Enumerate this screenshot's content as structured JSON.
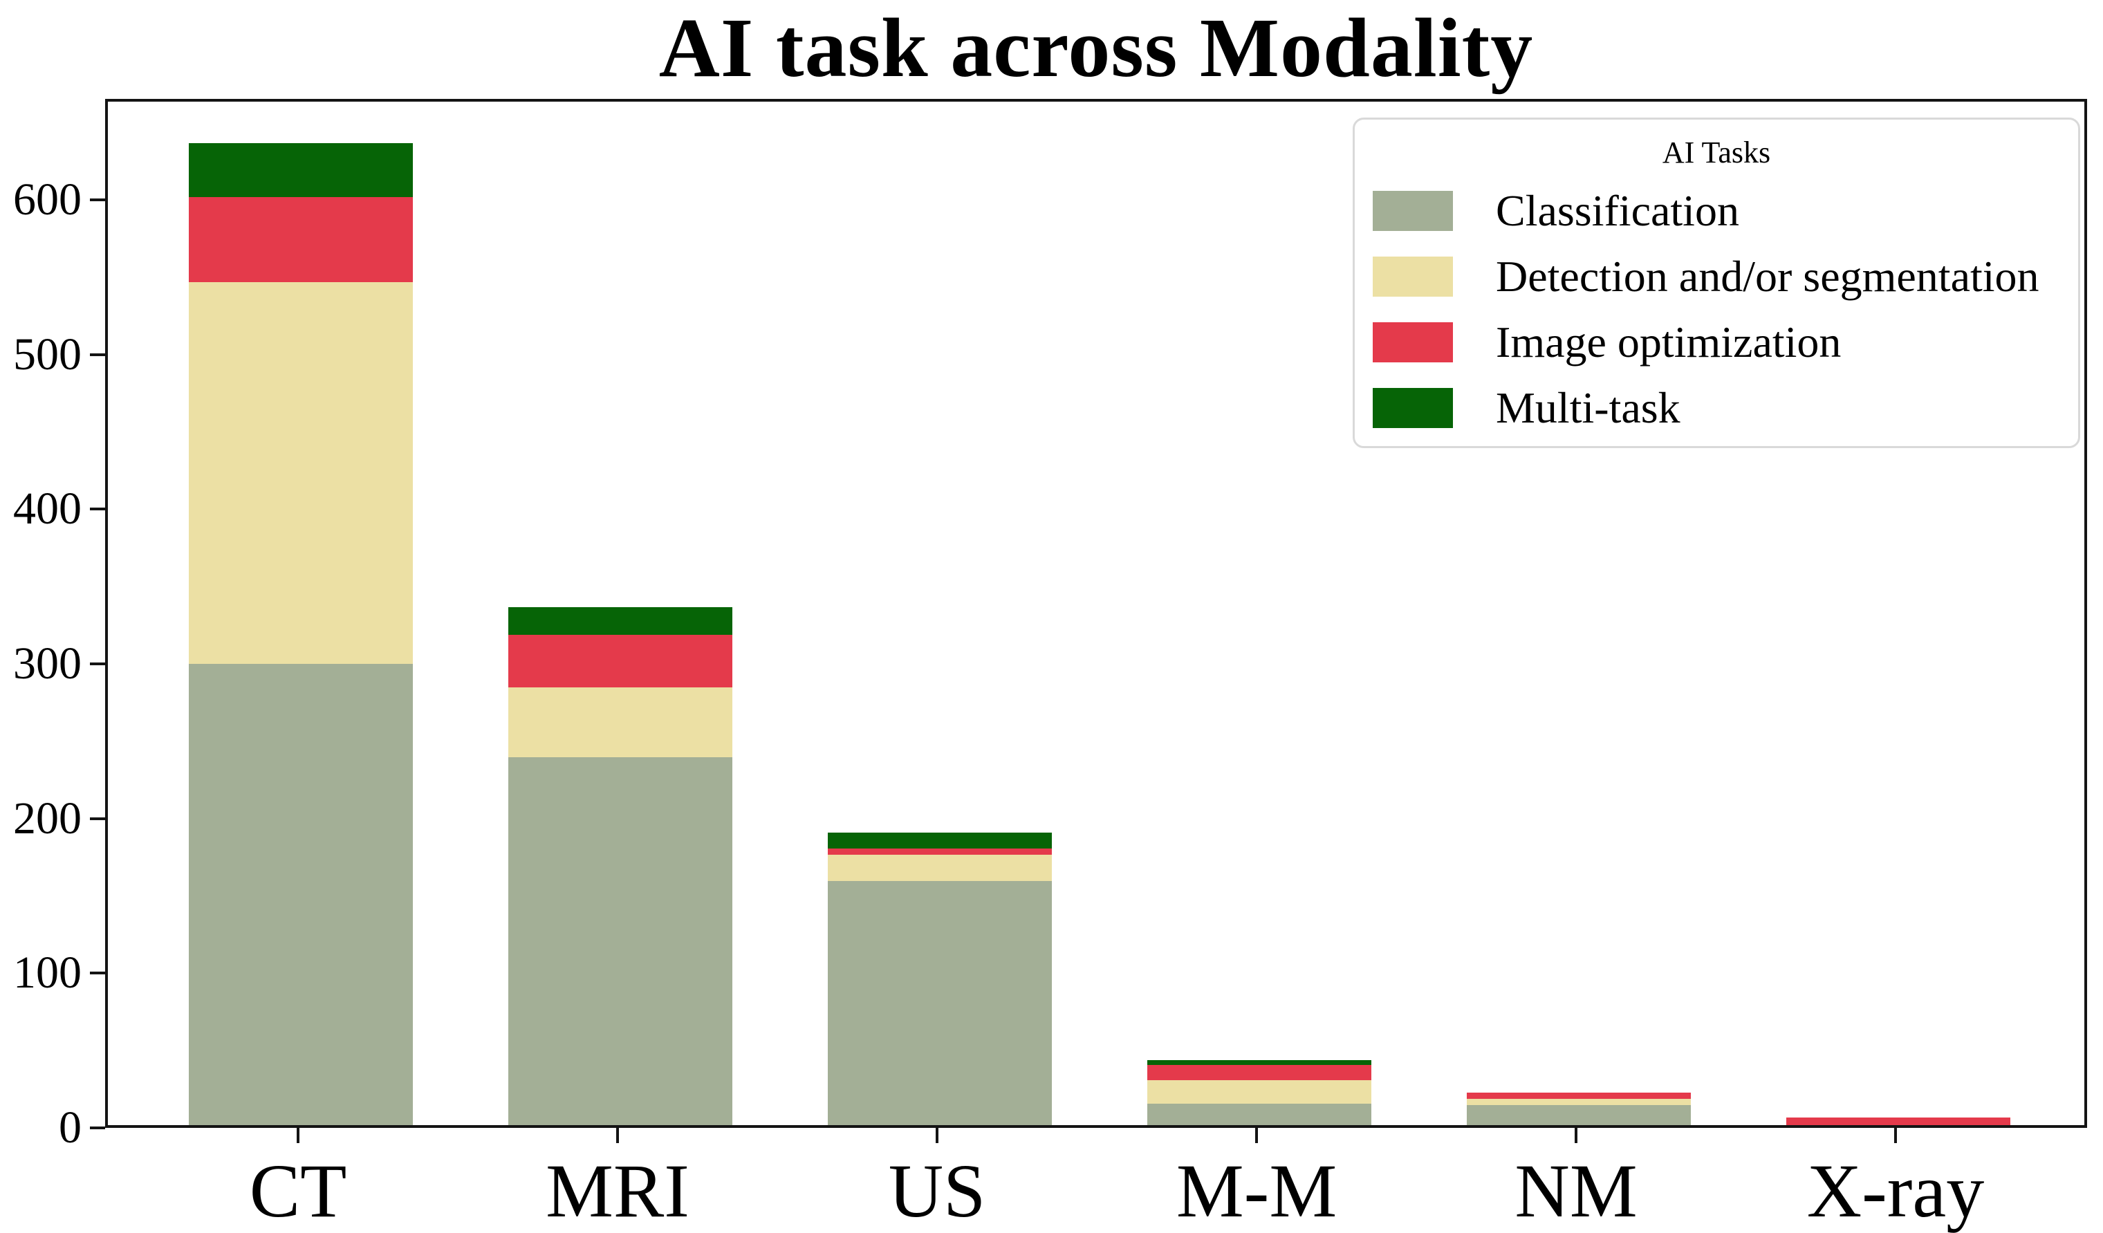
{
  "figure": {
    "title": "AI task across Modality"
  },
  "chart_data": {
    "type": "bar",
    "stacked": true,
    "title": "AI task across Modality",
    "xlabel": "",
    "ylabel": "",
    "categories": [
      "CT",
      "MRI",
      "US",
      "M-M",
      "NM",
      "X-ray"
    ],
    "series": [
      {
        "name": "Classification",
        "color": "#A3AF96",
        "values": [
          298,
          238,
          158,
          14,
          13,
          0
        ]
      },
      {
        "name": "Detection and/or segmentation",
        "color": "#ECE0A4",
        "values": [
          247,
          45,
          17,
          15,
          4,
          0
        ]
      },
      {
        "name": "Image optimization",
        "color": "#E43A4B",
        "values": [
          55,
          34,
          4,
          10,
          4,
          5
        ]
      },
      {
        "name": "Multi-task",
        "color": "#066406",
        "values": [
          35,
          18,
          10,
          3,
          0,
          0
        ]
      }
    ],
    "totals": [
      635,
      335,
      189,
      42,
      21,
      5
    ],
    "legend": {
      "title": "AI Tasks",
      "position": "upper right"
    },
    "y_ticks": [
      0,
      100,
      200,
      300,
      400,
      500,
      600
    ],
    "ylim": [
      0,
      665
    ],
    "grid": false,
    "axis_color": "#141414",
    "background_color": "#ffffff"
  }
}
